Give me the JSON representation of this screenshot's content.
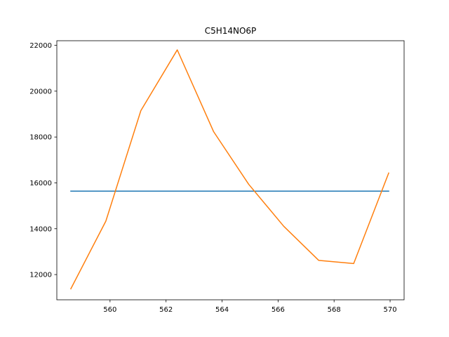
{
  "chart_data": {
    "type": "line",
    "title": "C5H14NO6P",
    "xlabel": "",
    "ylabel": "",
    "xlim": [
      558.1,
      570.5
    ],
    "ylim": [
      10900,
      22200
    ],
    "grid": false,
    "x_ticks": [
      560,
      562,
      564,
      566,
      568,
      570
    ],
    "y_ticks": [
      12000,
      14000,
      16000,
      18000,
      20000,
      22000
    ],
    "series": [
      {
        "color": "#1f77b4",
        "x": [
          558.6,
          569.95
        ],
        "y": [
          15640,
          15640
        ]
      },
      {
        "color": "#ff7f0e",
        "x": [
          558.6,
          559.85,
          561.1,
          562.4,
          563.7,
          564.95,
          566.2,
          567.45,
          568.7,
          569.95
        ],
        "y": [
          11380,
          14330,
          19150,
          21800,
          18230,
          15940,
          14110,
          12620,
          12480,
          16430
        ]
      }
    ]
  }
}
